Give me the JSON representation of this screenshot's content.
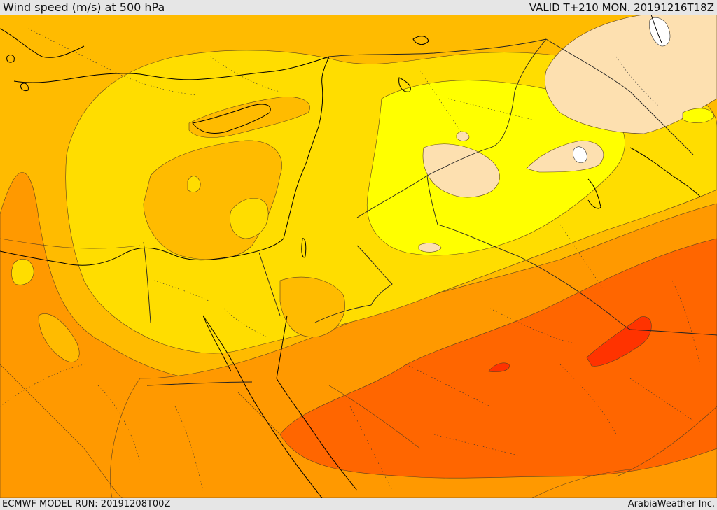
{
  "header": {
    "title": "Wind speed (m/s) at 500 hPa",
    "valid": "VALID T+210 MON. 20191216T18Z"
  },
  "footer": {
    "model_run": "ECMWF MODEL RUN: 20191208T00Z",
    "credit": "ArabiaWeather Inc."
  },
  "map": {
    "variable": "wind speed at 500 hPa",
    "palette": {
      "lightest": "#fde0b0",
      "bright_yellow": "#ffff00",
      "gold": "#ffdd00",
      "amber": "#ffbb00",
      "light_orange": "#ff9900",
      "orange": "#ff6600",
      "red_orange": "#ff3300",
      "white_core": "#ffffff",
      "coastline": "#000000",
      "contour": "#444444",
      "border": "#222222"
    }
  }
}
